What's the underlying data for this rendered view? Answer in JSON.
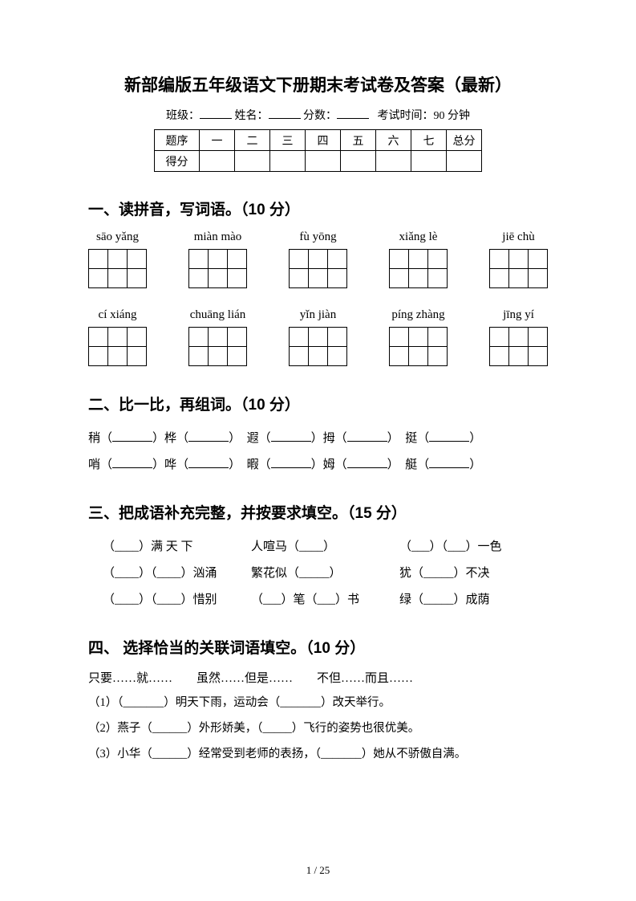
{
  "title": "新部编版五年级语文下册期末考试卷及答案（最新）",
  "info": {
    "class_label": "班级：",
    "name_label": "姓名：",
    "score_label": "分数：",
    "time_label": "考试时间：90 分钟"
  },
  "score_table": {
    "row1_header": "题序",
    "row2_header": "得分",
    "cols": [
      "一",
      "二",
      "三",
      "四",
      "五",
      "六",
      "七",
      "总分"
    ]
  },
  "s1": {
    "heading": "一、读拼音，写词语。（10 分）",
    "row1": [
      "sāo yǎng",
      "miàn mào",
      "fù yōng",
      "xiǎng lè",
      "jiē chù"
    ],
    "row2": [
      "cí xiáng",
      "chuāng lián",
      "yǐn jiàn",
      "píng zhàng",
      "jīng yí"
    ],
    "grid_cols": 3,
    "grid_rows": 2
  },
  "s2": {
    "heading": "二、比一比，再组词。（10 分）",
    "line1": [
      "稍",
      "桦",
      "遐",
      "拇",
      "挺"
    ],
    "line2": [
      "哨",
      "哗",
      "暇",
      "姆",
      "艇"
    ]
  },
  "s3": {
    "heading": "三、把成语补充完整，并按要求填空。（15 分）",
    "rows": [
      [
        "（____）满 天 下",
        "人喧马（____）",
        "（___）（___）一色"
      ],
      [
        "（____）（____）汹涌",
        "繁花似（_____）",
        "犹（_____）不决"
      ],
      [
        "（____）（____）惜别",
        "（___）笔（___）书",
        "绿（_____）成荫"
      ]
    ]
  },
  "s4": {
    "heading": "四、 选择恰当的关联词语填空。（10 分）",
    "options": "只要……就……　　虽然……但是……　　不但……而且……",
    "lines": [
      "（1）（_______）明天下雨，运动会（_______）改天举行。",
      "（2）燕子（______）外形娇美，（_____）飞行的姿势也很优美。",
      "（3）小华（______）经常受到老师的表扬，（_______）她从不骄傲自满。"
    ]
  },
  "page_num": "1 / 25"
}
